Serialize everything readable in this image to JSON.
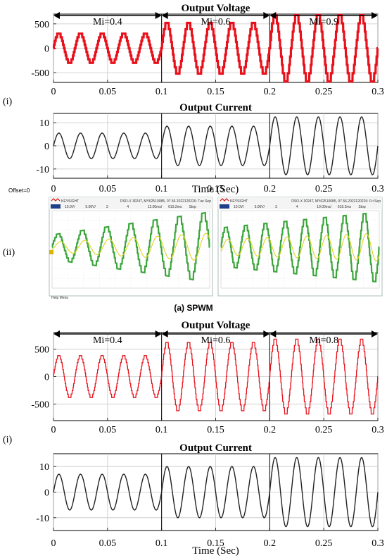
{
  "labels": {
    "panel_i_top": "(i)",
    "panel_ii": "(ii)",
    "panel_i_bottom": "(i)",
    "caption_a": "(a) SPWM",
    "offset": "Offset=0",
    "help_menu": "Help Menu"
  },
  "scopes": [
    {
      "brand": "KEYSIGHT",
      "header": "DSO-X 3024T,  MY62510085, 07.56.2022120226: Tue Sep",
      "status": [
        "10.0V/",
        "5.00V/",
        "3",
        "4",
        "12.00ms/",
        "619.2ms",
        "Stop"
      ]
    },
    {
      "brand": "KEYSIGHT",
      "header": "DSO-X 3024T,  MY62510085, 07.56.2022120226: Fri Sep",
      "status": [
        "10.0V/",
        "5.00V/",
        "3",
        "4",
        "10.00ms/",
        "619.2ms",
        "Stop"
      ]
    }
  ],
  "chart_data": [
    {
      "type": "line",
      "title": "Output Voltage",
      "xlabel": "",
      "ylabel": "",
      "xlim": [
        0,
        0.3
      ],
      "ylim": [
        -700,
        700
      ],
      "xticks": [
        "0",
        "0.05",
        "0.1",
        "0.15",
        "0.2",
        "0.25",
        "0.3"
      ],
      "yticks": [
        "500",
        "0",
        "-500"
      ],
      "grid": true,
      "color": "#e8101a",
      "waveform": "staircase",
      "frequency_hz": 50,
      "segments": [
        {
          "label": "Mi=0.4",
          "x": [
            0,
            0.1
          ],
          "amplitude": 300
        },
        {
          "label": "Mi=0.6",
          "x": [
            0.1,
            0.2
          ],
          "amplitude": 520
        },
        {
          "label": "Mi=0.9",
          "x": [
            0.2,
            0.3
          ],
          "amplitude": 680
        }
      ]
    },
    {
      "type": "line",
      "title": "Output Current",
      "xlabel": "",
      "ylabel": "",
      "xlim": [
        0,
        0.3
      ],
      "ylim": [
        -14,
        14
      ],
      "xticks": [
        "0",
        "0.05",
        "0.1",
        "0.15",
        "0.2",
        "0.25",
        "0.3"
      ],
      "yticks": [
        "10",
        "0",
        "-10"
      ],
      "grid": true,
      "color": "#222222",
      "waveform": "sine",
      "frequency_hz": 50,
      "segments": [
        {
          "x": [
            0,
            0.1
          ],
          "amplitude": 5.5
        },
        {
          "x": [
            0.1,
            0.2
          ],
          "amplitude": 8.5
        },
        {
          "x": [
            0.2,
            0.3
          ],
          "amplitude": 12.5
        }
      ]
    },
    {
      "type": "line",
      "title": "Output Voltage",
      "xlabel": "",
      "ylabel": "",
      "xlim": [
        0,
        0.3
      ],
      "ylim": [
        -800,
        800
      ],
      "xticks": [
        "0",
        "0.05",
        "0.1",
        "0.15",
        "0.2",
        "0.25",
        "0.3"
      ],
      "yticks": [
        "500",
        "0",
        "-500"
      ],
      "grid": true,
      "color": "#e8101a",
      "waveform": "staircase-thin",
      "frequency_hz": 50,
      "segments": [
        {
          "label": "Mi=0.4",
          "x": [
            0,
            0.1
          ],
          "amplitude": 380
        },
        {
          "label": "Mi=0.6",
          "x": [
            0.1,
            0.2
          ],
          "amplitude": 620
        },
        {
          "label": "Mi=0.8",
          "x": [
            0.2,
            0.3
          ],
          "amplitude": 680
        }
      ]
    },
    {
      "type": "line",
      "title": "Output Current",
      "xlabel": "Time (Sec)",
      "ylabel": "",
      "xlim": [
        0,
        0.3
      ],
      "ylim": [
        -15,
        15
      ],
      "xticks": [
        "0",
        "0.05",
        "0.1",
        "0.15",
        "0.2",
        "0.25",
        "0.3"
      ],
      "yticks": [
        "10",
        "0",
        "-10"
      ],
      "grid": true,
      "color": "#222222",
      "waveform": "sine",
      "frequency_hz": 50,
      "segments": [
        {
          "x": [
            0,
            0.1
          ],
          "amplitude": 7
        },
        {
          "x": [
            0.1,
            0.2
          ],
          "amplitude": 10
        },
        {
          "x": [
            0.2,
            0.3
          ],
          "amplitude": 13.5
        }
      ]
    }
  ],
  "xlabel_top_block": "Time (Sec)"
}
